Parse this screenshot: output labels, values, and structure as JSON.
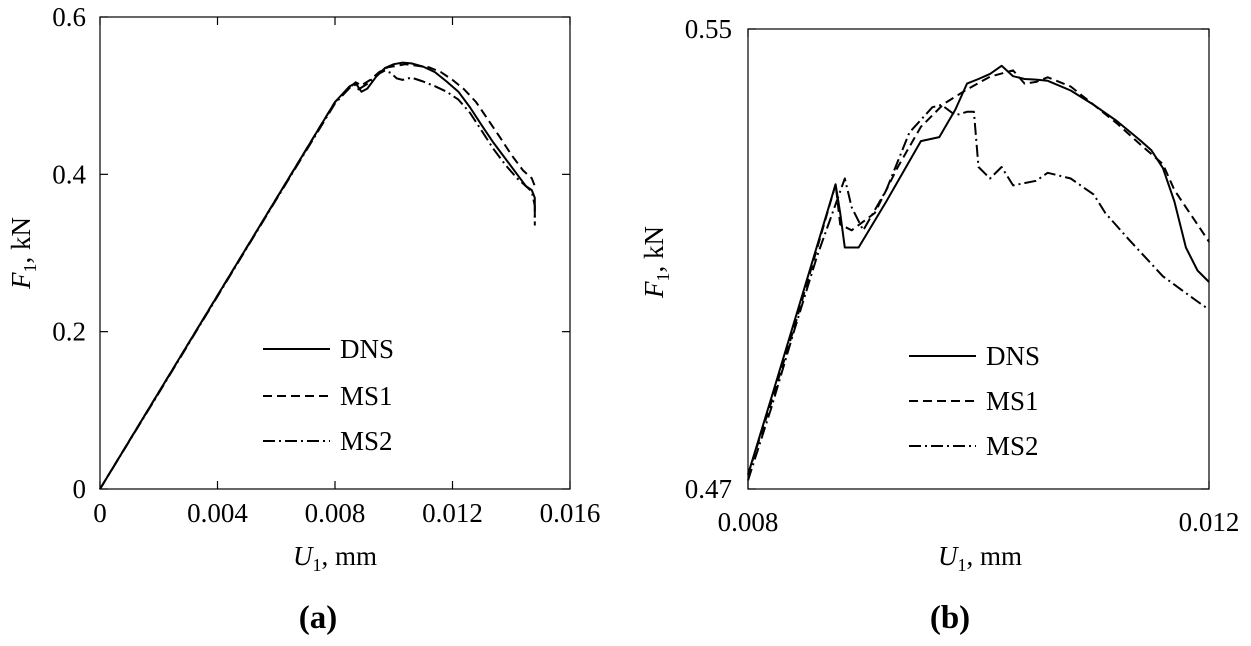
{
  "chart_data": [
    {
      "type": "line",
      "panel_label": "(a)",
      "xlabel": {
        "symbol": "U",
        "subscript": "1",
        "unit": ", mm"
      },
      "ylabel": {
        "symbol": "F",
        "subscript": "1",
        "unit": ", kN"
      },
      "xlim": [
        0,
        0.016
      ],
      "ylim": [
        0,
        0.6
      ],
      "x_ticks": [
        0,
        0.004,
        0.008,
        0.012,
        0.016
      ],
      "x_tick_labels": [
        "0",
        "0.004",
        "0.008",
        "0.012",
        "0.016"
      ],
      "y_ticks": [
        0,
        0.2,
        0.4,
        0.6
      ],
      "y_tick_labels": [
        "0",
        "0.2",
        "0.4",
        "0.6"
      ],
      "grid": false,
      "legend_position": "bottom-right",
      "series": [
        {
          "name": "DNS",
          "dash": "solid",
          "x": [
            0,
            0.002,
            0.004,
            0.006,
            0.008,
            0.0085,
            0.0087,
            0.0089,
            0.0091,
            0.0094,
            0.0097,
            0.01,
            0.0103,
            0.0106,
            0.011,
            0.0114,
            0.0118,
            0.0122,
            0.0126,
            0.013,
            0.0134,
            0.0138,
            0.0142,
            0.0145,
            0.0147,
            0.0148,
            0.0148
          ],
          "y": [
            0,
            0.123,
            0.246,
            0.369,
            0.492,
            0.512,
            0.516,
            0.505,
            0.509,
            0.524,
            0.535,
            0.54,
            0.542,
            0.541,
            0.537,
            0.53,
            0.518,
            0.505,
            0.485,
            0.462,
            0.44,
            0.42,
            0.4,
            0.385,
            0.38,
            0.37,
            0.345
          ]
        },
        {
          "name": "MS1",
          "dash": "dashed",
          "x": [
            0,
            0.002,
            0.004,
            0.006,
            0.008,
            0.0085,
            0.0087,
            0.0089,
            0.0092,
            0.0095,
            0.0098,
            0.0101,
            0.0104,
            0.0108,
            0.0112,
            0.0116,
            0.012,
            0.0124,
            0.0128,
            0.0132,
            0.0136,
            0.014,
            0.0144,
            0.0147,
            0.0148
          ],
          "y": [
            0,
            0.123,
            0.246,
            0.369,
            0.492,
            0.51,
            0.517,
            0.513,
            0.52,
            0.53,
            0.536,
            0.538,
            0.54,
            0.538,
            0.536,
            0.53,
            0.52,
            0.508,
            0.492,
            0.47,
            0.448,
            0.425,
            0.405,
            0.395,
            0.385
          ]
        },
        {
          "name": "MS2",
          "dash": "dashdot",
          "x": [
            0,
            0.002,
            0.004,
            0.006,
            0.008,
            0.0085,
            0.0087,
            0.0088,
            0.0091,
            0.0094,
            0.0097,
            0.0099,
            0.0101,
            0.0103,
            0.0106,
            0.011,
            0.0114,
            0.0118,
            0.0122,
            0.0126,
            0.013,
            0.0134,
            0.0138,
            0.0142,
            0.0145,
            0.0147,
            0.0148,
            0.0148
          ],
          "y": [
            0,
            0.122,
            0.245,
            0.368,
            0.49,
            0.51,
            0.514,
            0.508,
            0.515,
            0.526,
            0.532,
            0.529,
            0.522,
            0.52,
            0.523,
            0.518,
            0.512,
            0.505,
            0.495,
            0.478,
            0.455,
            0.432,
            0.412,
            0.395,
            0.385,
            0.378,
            0.36,
            0.335
          ]
        }
      ]
    },
    {
      "type": "line",
      "panel_label": "(b)",
      "xlabel": {
        "symbol": "U",
        "subscript": "1",
        "unit": ", mm"
      },
      "ylabel": {
        "symbol": "F",
        "subscript": "1",
        "unit": ", kN"
      },
      "xlim": [
        0.008,
        0.012
      ],
      "ylim": [
        0.47,
        0.55
      ],
      "x_ticks": [
        0.008,
        0.012
      ],
      "x_tick_labels": [
        "0.008",
        "0.012"
      ],
      "y_ticks": [
        0.47,
        0.55
      ],
      "y_tick_labels": [
        "0.47",
        "0.55"
      ],
      "grid": false,
      "legend_position": "bottom-right",
      "series": [
        {
          "name": "DNS",
          "dash": "solid",
          "x": [
            0.008,
            0.0082,
            0.0084,
            0.00876,
            0.0088,
            0.00884,
            0.00896,
            0.0092,
            0.0095,
            0.00966,
            0.0098,
            0.0099,
            0.01,
            0.0101,
            0.0102,
            0.0103,
            0.0104,
            0.0105,
            0.0106,
            0.0108,
            0.011,
            0.0112,
            0.0114,
            0.0115,
            0.0116,
            0.0117,
            0.0118,
            0.0119,
            0.012
          ],
          "y": [
            0.4725,
            0.4857,
            0.499,
            0.523,
            0.518,
            0.512,
            0.512,
            0.52,
            0.5305,
            0.5312,
            0.536,
            0.5405,
            0.5413,
            0.5422,
            0.5436,
            0.5418,
            0.5413,
            0.5412,
            0.541,
            0.5393,
            0.5368,
            0.534,
            0.5307,
            0.5289,
            0.5258,
            0.52,
            0.512,
            0.508,
            0.506
          ]
        },
        {
          "name": "MS1",
          "dash": "dashed",
          "x": [
            0.008,
            0.0082,
            0.0084,
            0.00876,
            0.0088,
            0.0089,
            0.0091,
            0.0093,
            0.0095,
            0.0097,
            0.0099,
            0.0101,
            0.0103,
            0.0104,
            0.0105,
            0.0106,
            0.0108,
            0.011,
            0.0112,
            0.0114,
            0.0116,
            0.0117,
            0.0118,
            0.0119,
            0.012
          ],
          "y": [
            0.4725,
            0.485,
            0.498,
            0.523,
            0.516,
            0.515,
            0.518,
            0.526,
            0.533,
            0.537,
            0.5395,
            0.5417,
            0.5428,
            0.5405,
            0.5408,
            0.5416,
            0.54,
            0.5368,
            0.5336,
            0.53,
            0.5265,
            0.522,
            0.519,
            0.516,
            0.513
          ]
        },
        {
          "name": "MS2",
          "dash": "dashdot",
          "x": [
            0.008,
            0.0082,
            0.0084,
            0.0086,
            0.00884,
            0.0089,
            0.009,
            0.0092,
            0.0094,
            0.0096,
            0.00968,
            0.0098,
            0.0099,
            0.00996,
            0.01,
            0.0101,
            0.0102,
            0.0103,
            0.0105,
            0.0106,
            0.0108,
            0.011,
            0.0111,
            0.0113,
            0.0116,
            0.0119,
            0.012
          ],
          "y": [
            0.4715,
            0.484,
            0.4975,
            0.5105,
            0.524,
            0.519,
            0.515,
            0.522,
            0.532,
            0.5364,
            0.5368,
            0.535,
            0.5356,
            0.5356,
            0.526,
            0.524,
            0.526,
            0.5228,
            0.5236,
            0.525,
            0.524,
            0.5212,
            0.518,
            0.5135,
            0.507,
            0.5026,
            0.5012
          ]
        }
      ]
    }
  ]
}
